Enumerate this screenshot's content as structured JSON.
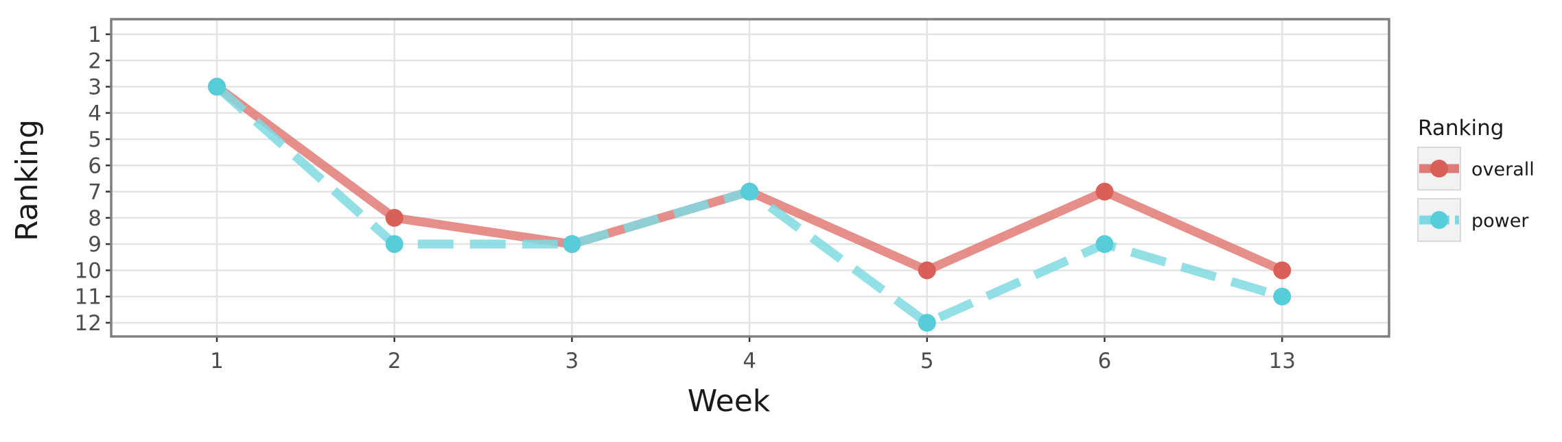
{
  "chart_data": {
    "type": "line",
    "title": "",
    "xlabel": "Week",
    "ylabel": "Ranking",
    "categories": [
      "1",
      "2",
      "3",
      "4",
      "5",
      "6",
      "13"
    ],
    "y_ticks": [
      1,
      2,
      3,
      4,
      5,
      6,
      7,
      8,
      9,
      10,
      11,
      12
    ],
    "ylim": [
      12.5,
      0.5
    ],
    "y_reversed": true,
    "grid": true,
    "legend": {
      "title": "Ranking",
      "placement": "right"
    },
    "series": [
      {
        "name": "overall",
        "values": [
          3,
          8,
          9,
          7,
          10,
          7,
          10
        ],
        "color": "#E07A76",
        "point_color": "#D95F59",
        "linestyle": "solid"
      },
      {
        "name": "power",
        "values": [
          3,
          9,
          9,
          7,
          12,
          9,
          11
        ],
        "color": "#7FD9E2",
        "point_color": "#56CDD8",
        "linestyle": "dashed"
      }
    ]
  }
}
